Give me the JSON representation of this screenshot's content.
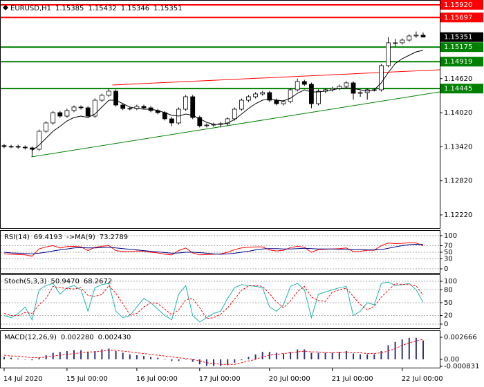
{
  "chart_data": [
    {
      "type": "candlestick",
      "symbol": "EURUSD,H1",
      "categories": [
        "14 Jul 2020",
        null,
        null,
        null,
        null,
        null,
        null,
        null,
        null,
        "15 Jul 00:00",
        null,
        null,
        null,
        null,
        null,
        null,
        null,
        null,
        null,
        "16 Jul 00:00",
        null,
        null,
        null,
        null,
        null,
        null,
        null,
        null,
        "17 Jul 00:00",
        null,
        null,
        null,
        null,
        null,
        null,
        null,
        null,
        null,
        "20 Jul 00:00",
        null,
        null,
        null,
        null,
        null,
        null,
        null,
        null,
        "21 Jul 00:00",
        null,
        null,
        null,
        null,
        null,
        null,
        null,
        null,
        null,
        "22 Jul 00:00",
        null,
        null,
        null
      ],
      "open": [
        1.1344,
        1.13425,
        1.13425,
        1.13413,
        1.134,
        1.13376,
        1.13693,
        1.13839,
        1.14021,
        1.1396,
        1.14058,
        1.14119,
        1.14106,
        1.1396,
        1.1424,
        1.14326,
        1.14399,
        1.14155,
        1.14094,
        1.14094,
        1.14131,
        1.14106,
        1.14058,
        1.14021,
        1.13912,
        1.13839,
        1.14082,
        1.14301,
        1.13936,
        1.1379,
        1.13802,
        1.13814,
        1.13827,
        1.13912,
        1.14082,
        1.1424,
        1.14301,
        1.1435,
        1.14374,
        1.1424,
        1.14179,
        1.14216,
        1.14423,
        1.14569,
        1.1452,
        1.14179,
        1.14399,
        1.14423,
        1.14447,
        1.14484,
        1.14545,
        1.14362,
        1.14374,
        1.14423,
        1.14423,
        1.14849,
        1.15251,
        1.15251,
        1.15299,
        1.15372,
        1.15385
      ],
      "high": [
        1.1347,
        1.13455,
        1.13455,
        1.13443,
        1.1343,
        1.13723,
        1.13869,
        1.14051,
        1.14051,
        1.14088,
        1.14149,
        1.14149,
        1.14136,
        1.1427,
        1.14356,
        1.1445,
        1.14429,
        1.14185,
        1.14124,
        1.14161,
        1.14161,
        1.14136,
        1.14088,
        1.14051,
        1.13942,
        1.14112,
        1.14331,
        1.14331,
        1.13966,
        1.13832,
        1.13844,
        1.13857,
        1.13942,
        1.14112,
        1.1427,
        1.14331,
        1.1438,
        1.14404,
        1.14404,
        1.1427,
        1.14246,
        1.14453,
        1.1462,
        1.14599,
        1.1455,
        1.14429,
        1.14453,
        1.14477,
        1.14514,
        1.14575,
        1.14575,
        1.14404,
        1.14453,
        1.14453,
        1.14879,
        1.1535,
        1.1532,
        1.15329,
        1.15402,
        1.1545,
        1.15432
      ],
      "low": [
        1.13395,
        1.13395,
        1.13383,
        1.1337,
        1.1325,
        1.13346,
        1.13663,
        1.13809,
        1.1393,
        1.1393,
        1.14028,
        1.14076,
        1.1393,
        1.1393,
        1.1421,
        1.14296,
        1.14125,
        1.14064,
        1.14064,
        1.14064,
        1.14076,
        1.14028,
        1.13991,
        1.13882,
        1.1378,
        1.13809,
        1.14052,
        1.13906,
        1.1376,
        1.1376,
        1.13772,
        1.1376,
        1.13797,
        1.13882,
        1.14052,
        1.1421,
        1.14271,
        1.1432,
        1.1421,
        1.14149,
        1.14149,
        1.14186,
        1.14393,
        1.1449,
        1.141,
        1.14149,
        1.14369,
        1.14393,
        1.14417,
        1.14454,
        1.1425,
        1.143,
        1.1425,
        1.14393,
        1.14393,
        1.14819,
        1.1518,
        1.15221,
        1.15269,
        1.15342,
        1.15346
      ],
      "close": [
        1.13425,
        1.13425,
        1.13413,
        1.134,
        1.13376,
        1.13693,
        1.13839,
        1.14021,
        1.1396,
        1.14058,
        1.14119,
        1.14106,
        1.1396,
        1.1424,
        1.14326,
        1.14399,
        1.14155,
        1.14094,
        1.14094,
        1.14131,
        1.14106,
        1.14058,
        1.14021,
        1.13912,
        1.13839,
        1.14082,
        1.14301,
        1.13936,
        1.1379,
        1.13802,
        1.13814,
        1.13827,
        1.13912,
        1.14082,
        1.1424,
        1.14301,
        1.1435,
        1.14374,
        1.1424,
        1.14179,
        1.14216,
        1.14423,
        1.14569,
        1.1452,
        1.14179,
        1.14399,
        1.14423,
        1.14447,
        1.14484,
        1.14545,
        1.14362,
        1.14374,
        1.14423,
        1.14423,
        1.14849,
        1.15251,
        1.15251,
        1.15299,
        1.15372,
        1.15385,
        1.15351
      ],
      "ma": {
        "color": "#000000",
        "values": [
          null,
          null,
          null,
          null,
          1.13352,
          1.13449,
          1.13571,
          1.13693,
          1.13778,
          1.13875,
          1.13936,
          1.1396,
          1.13936,
          1.13997,
          1.14119,
          1.1424,
          1.1424,
          1.14179,
          1.14119,
          1.14094,
          1.14082,
          1.14082,
          1.14058,
          1.14021,
          1.13973,
          1.1396,
          1.13997,
          1.13973,
          1.13912,
          1.13851,
          1.13814,
          1.13814,
          1.13839,
          1.13899,
          1.13997,
          1.14094,
          1.14179,
          1.1424,
          1.14265,
          1.1424,
          1.14228,
          1.14277,
          1.14362,
          1.14423,
          1.14386,
          1.14386,
          1.14399,
          1.14423,
          1.14447,
          1.14459,
          1.14447,
          1.14423,
          1.14399,
          1.14423,
          1.14545,
          1.14727,
          1.14885,
          1.14971,
          1.15031,
          1.15092,
          1.15117
        ]
      },
      "levels": [
        {
          "value": 1.1592,
          "label": "1.15920",
          "color": "#ff0000"
        },
        {
          "value": 1.15697,
          "color": "#ff0000"
        },
        {
          "value": 1.15175,
          "color": "#008000"
        },
        {
          "value": 1.14919,
          "color": "#008000"
        },
        {
          "value": 1.14445,
          "color": "#008000"
        }
      ],
      "trendlines": [
        {
          "color": "#ff0000",
          "points": [
            [
              15.5,
              1.14508
            ],
            [
              62.4,
              1.14776
            ]
          ]
        },
        {
          "color": "#008000",
          "points": [
            [
              3.9,
              1.13242
            ],
            [
              62.4,
              1.14386
            ]
          ]
        }
      ],
      "current_price": 1.15351,
      "ylim": [
        1.11988,
        1.16005
      ],
      "yticks": [
        {
          "value": 1.1462,
          "label": "1.14620"
        },
        {
          "value": 1.1402,
          "label": "1.14020"
        },
        {
          "value": 1.1342,
          "label": "1.13420"
        },
        {
          "value": 1.1282,
          "label": "1.12820"
        },
        {
          "value": 1.1222,
          "label": "1.12220"
        }
      ]
    },
    {
      "type": "line",
      "title": "RSI(14)",
      "ylim": [
        -12.5,
        116.7
      ],
      "yticks": [
        100,
        70,
        50,
        30,
        0
      ],
      "grid": true,
      "series": [
        {
          "color": "#ff0000",
          "kind": "line",
          "values": [
            45,
            44,
            43,
            42,
            38,
            60,
            66,
            70,
            63,
            67,
            68,
            66,
            55,
            65,
            68,
            70,
            55,
            52,
            52,
            54,
            53,
            50,
            48,
            44,
            42,
            55,
            63,
            48,
            42,
            43,
            44,
            45,
            50,
            58,
            63,
            65,
            66,
            66,
            57,
            54,
            56,
            64,
            68,
            65,
            50,
            58,
            59,
            60,
            61,
            63,
            52,
            53,
            56,
            56,
            70,
            78,
            76,
            77,
            79,
            78,
            69.4193
          ]
        },
        {
          "name": "->MA(9)",
          "color": "#000080",
          "kind": "line",
          "values": [
            50,
            48,
            47,
            46,
            45,
            47,
            50,
            54,
            57,
            60,
            63,
            64,
            63,
            63,
            64,
            65,
            63,
            61,
            59,
            57,
            55,
            53,
            51,
            49,
            47,
            48,
            50,
            50,
            49,
            47,
            45,
            44,
            45,
            47,
            50,
            53,
            57,
            60,
            61,
            61,
            60,
            60,
            61,
            62,
            61,
            60,
            60,
            60,
            59,
            59,
            58,
            58,
            57,
            57,
            58,
            62,
            66,
            70,
            73,
            74,
            73.2789
          ]
        }
      ]
    },
    {
      "type": "line",
      "title": "Stoch(5,3,3)",
      "ylim": [
        -9.7,
        116.1
      ],
      "yticks": [
        100,
        80,
        50,
        20,
        0
      ],
      "grid": true,
      "series": [
        {
          "color": "#20b2aa",
          "kind": "line",
          "current_label": "50.9470",
          "values": [
            20,
            15,
            25,
            40,
            10,
            80,
            90,
            95,
            70,
            85,
            90,
            80,
            30,
            85,
            92,
            95,
            30,
            15,
            20,
            40,
            60,
            50,
            35,
            20,
            10,
            70,
            90,
            20,
            5,
            15,
            25,
            30,
            60,
            85,
            92,
            90,
            88,
            85,
            40,
            30,
            45,
            88,
            95,
            80,
            15,
            70,
            75,
            80,
            85,
            88,
            20,
            30,
            50,
            45,
            95,
            98,
            90,
            92,
            95,
            80,
            50.947
          ]
        },
        {
          "color": "#ff0000",
          "kind": "line",
          "dashed": true,
          "values": [
            25,
            20,
            20,
            27,
            25,
            45,
            60,
            88,
            85,
            83,
            82,
            85,
            67,
            65,
            69,
            90,
            72,
            47,
            22,
            25,
            40,
            50,
            48,
            35,
            22,
            33,
            57,
            60,
            38,
            13,
            15,
            23,
            38,
            58,
            79,
            89,
            90,
            88,
            71,
            52,
            38,
            54,
            76,
            88,
            63,
            55,
            53,
            75,
            80,
            84,
            64,
            46,
            33,
            42,
            63,
            79,
            94,
            93,
            92,
            89,
            68.2672
          ]
        }
      ]
    },
    {
      "type": "bar",
      "title": "MACD(12,26,9)",
      "ylim": [
        -0.001,
        0.0035
      ],
      "yticks": [
        0.002666,
        {
          "value": 0,
          "label": "0.00"
        },
        -0.000831
      ],
      "grid": false,
      "series": [
        {
          "color": "#33337a",
          "kind": "bar",
          "current_label": "0.002280",
          "values": [
            0.0003,
            0.0002,
            0.0001,
            0,
            -0.0001,
            0.0002,
            0.0005,
            0.0008,
            0.0009,
            0.001,
            0.0011,
            0.0011,
            0.0009,
            0.001,
            0.0012,
            0.0013,
            0.001,
            0.0008,
            0.0006,
            0.0005,
            0.0004,
            0.0003,
            0.0002,
            0,
            -0.0002,
            -0.0002,
            0,
            -0.0003,
            -0.0006,
            -0.0008,
            -0.0008,
            -0.0008,
            -0.0007,
            -0.0004,
            -0.0001,
            0.0003,
            0.0006,
            0.0009,
            0.0009,
            0.0008,
            0.0007,
            0.0009,
            0.0012,
            0.0012,
            0.0008,
            0.0008,
            0.0008,
            0.0008,
            0.0009,
            0.001,
            0.0007,
            0.0006,
            0.0006,
            0.0006,
            0.001,
            0.0017,
            0.0021,
            0.0024,
            0.0026,
            0.0026,
            0.00228
          ]
        },
        {
          "color": "#ff0000",
          "kind": "line",
          "dashed": true,
          "current_label": "0.002430",
          "values": [
            0.0005,
            0.0004,
            0.0004,
            0.0003,
            0.0002,
            0.0002,
            0.0003,
            0.0004,
            0.0005,
            0.0006,
            0.0007,
            0.0008,
            0.0009,
            0.0009,
            0.001,
            0.0011,
            0.0011,
            0.001,
            0.0009,
            0.0008,
            0.0007,
            0.0006,
            0.0005,
            0.0004,
            0.0003,
            0.0002,
            0.0001,
            0,
            -0.0002,
            -0.0004,
            -0.0005,
            -0.0006,
            -0.0006,
            -0.0006,
            -0.0004,
            -0.0002,
            0,
            0.0003,
            0.0005,
            0.0006,
            0.0007,
            0.0008,
            0.0009,
            0.001,
            0.0009,
            0.0009,
            0.0008,
            0.0008,
            0.0008,
            0.0009,
            0.0008,
            0.0008,
            0.0007,
            0.0007,
            0.0008,
            0.001,
            0.0013,
            0.0017,
            0.002,
            0.0022,
            0.00243
          ]
        }
      ]
    }
  ]
}
